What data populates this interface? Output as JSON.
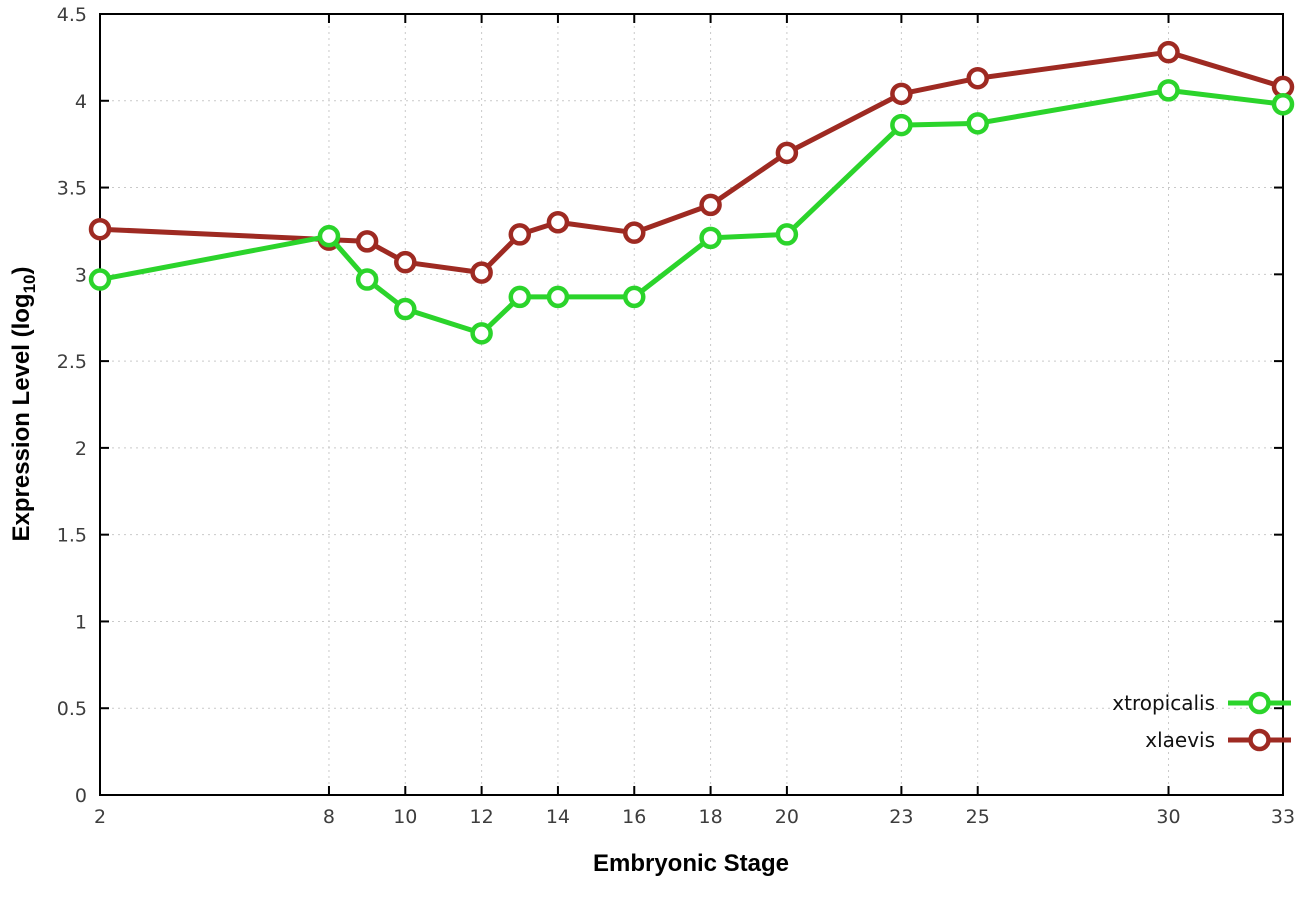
{
  "chart_data": {
    "type": "line",
    "title": "",
    "xlabel": "Embryonic Stage",
    "ylabel": "Expression Level (log10)",
    "ylabel_parts": {
      "prefix": "Expression Level (log",
      "sub": "10",
      "suffix": ")"
    },
    "x": [
      2,
      8,
      9,
      10,
      12,
      13,
      14,
      16,
      18,
      20,
      23,
      25,
      30,
      33
    ],
    "series": [
      {
        "name": "xtropicalis",
        "color": "#2bd42b",
        "values": [
          2.97,
          3.22,
          2.97,
          2.8,
          2.66,
          2.87,
          2.87,
          2.87,
          3.21,
          3.23,
          3.86,
          3.87,
          4.06,
          3.98
        ]
      },
      {
        "name": "xlaevis",
        "color": "#9e2a22",
        "values": [
          3.26,
          3.2,
          3.19,
          3.07,
          3.01,
          3.23,
          3.3,
          3.24,
          3.4,
          3.7,
          4.04,
          4.13,
          4.28,
          4.08
        ]
      }
    ],
    "xlim": [
      2,
      33
    ],
    "ylim": [
      0,
      4.5
    ],
    "xticks": [
      2,
      8,
      10,
      12,
      14,
      16,
      18,
      20,
      23,
      25,
      30,
      33
    ],
    "xtick_labels": [
      "2",
      "8",
      "10",
      "12",
      "14",
      "16",
      "18",
      "20",
      "23",
      "25",
      "30",
      "33"
    ],
    "yticks": [
      0,
      0.5,
      1,
      1.5,
      2,
      2.5,
      3,
      3.5,
      4,
      4.5
    ],
    "ytick_labels": [
      "0",
      "0.5",
      "1",
      "1.5",
      "2",
      "2.5",
      "3",
      "3.5",
      "4",
      "4.5"
    ],
    "grid": true,
    "legend_position": "bottom-right",
    "marker": "open-circle"
  },
  "colors": {
    "background": "#ffffff",
    "axis_border": "#000000",
    "grid": "#c9c9c9",
    "tick_text": "#3d3d3d",
    "legend_text": "#111111",
    "marker_fill": "#ffffff"
  }
}
